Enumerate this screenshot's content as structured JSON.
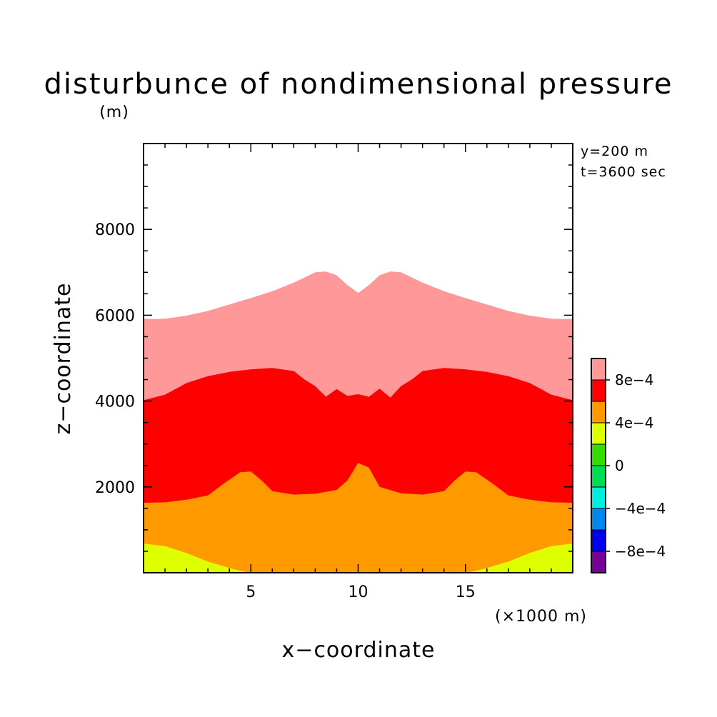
{
  "chart_data": {
    "type": "contour",
    "title": "disturbunce of nondimensional pressure",
    "ylabel": "z−coordinate",
    "yunit": "(m)",
    "xlabel": "x−coordinate",
    "xunit": "(×1000 m)",
    "annotations": [
      "y=200 m",
      "t=3600 sec"
    ],
    "xlim": [
      0,
      20
    ],
    "ylim": [
      0,
      10000
    ],
    "x_ticks": [
      {
        "value": 5,
        "label": "5"
      },
      {
        "value": 10,
        "label": "10"
      },
      {
        "value": 15,
        "label": "15"
      }
    ],
    "y_ticks": [
      {
        "value": 2000,
        "label": "2000"
      },
      {
        "value": 4000,
        "label": "4000"
      },
      {
        "value": 6000,
        "label": "6000"
      },
      {
        "value": 8000,
        "label": "8000"
      }
    ],
    "colorbar": {
      "levels": [
        {
          "color": "#ff9999"
        },
        {
          "color": "#ff0000"
        },
        {
          "color": "#ff9900"
        },
        {
          "color": "#ddff00"
        },
        {
          "color": "#33dd00"
        },
        {
          "color": "#00dd55"
        },
        {
          "color": "#00eedd"
        },
        {
          "color": "#0088ee"
        },
        {
          "color": "#0000ee"
        },
        {
          "color": "#770099"
        }
      ],
      "labels": [
        "8e−4",
        "4e−4",
        "0",
        "−4e−4",
        "−8e−4"
      ]
    },
    "contour_bands": [
      {
        "name": "above-8e-4",
        "color": "#ff9999",
        "upper_boundary": [
          [
            0,
            5920
          ],
          [
            0.5,
            5910
          ],
          [
            1,
            5920
          ],
          [
            2,
            5990
          ],
          [
            3,
            6100
          ],
          [
            4,
            6250
          ],
          [
            5,
            6400
          ],
          [
            6,
            6560
          ],
          [
            7,
            6760
          ],
          [
            7.5,
            6880
          ],
          [
            8,
            7000
          ],
          [
            8.5,
            7020
          ],
          [
            9,
            6930
          ],
          [
            9.5,
            6700
          ],
          [
            10,
            6520
          ],
          [
            10.5,
            6700
          ],
          [
            11,
            6930
          ],
          [
            11.5,
            7020
          ],
          [
            12,
            7000
          ],
          [
            12.5,
            6880
          ],
          [
            13,
            6760
          ],
          [
            14,
            6560
          ],
          [
            15,
            6400
          ],
          [
            16,
            6250
          ],
          [
            17,
            6100
          ],
          [
            18,
            5990
          ],
          [
            19,
            5920
          ],
          [
            19.5,
            5910
          ],
          [
            20,
            5920
          ]
        ]
      },
      {
        "name": "4e-4-to-8e-4",
        "color": "#ff0000",
        "upper_boundary": [
          [
            0,
            4020
          ],
          [
            1,
            4150
          ],
          [
            2,
            4420
          ],
          [
            3,
            4580
          ],
          [
            4,
            4680
          ],
          [
            5,
            4740
          ],
          [
            6,
            4770
          ],
          [
            7,
            4700
          ],
          [
            7.5,
            4500
          ],
          [
            8,
            4350
          ],
          [
            8.5,
            4100
          ],
          [
            9,
            4280
          ],
          [
            9.5,
            4120
          ],
          [
            10,
            4160
          ],
          [
            10.5,
            4100
          ],
          [
            11,
            4290
          ],
          [
            11.5,
            4080
          ],
          [
            12,
            4350
          ],
          [
            12.5,
            4500
          ],
          [
            13,
            4700
          ],
          [
            14,
            4770
          ],
          [
            15,
            4740
          ],
          [
            16,
            4680
          ],
          [
            17,
            4580
          ],
          [
            18,
            4420
          ],
          [
            19,
            4150
          ],
          [
            20,
            4020
          ]
        ]
      },
      {
        "name": "0-to-4e-4",
        "color": "#ff9900",
        "upper_boundary": [
          [
            0,
            1630
          ],
          [
            1,
            1640
          ],
          [
            2,
            1700
          ],
          [
            3,
            1800
          ],
          [
            3.8,
            2100
          ],
          [
            4.5,
            2340
          ],
          [
            5,
            2360
          ],
          [
            5.5,
            2150
          ],
          [
            6,
            1900
          ],
          [
            7,
            1820
          ],
          [
            8,
            1840
          ],
          [
            9,
            1930
          ],
          [
            9.5,
            2150
          ],
          [
            10,
            2560
          ],
          [
            10.5,
            2450
          ],
          [
            11,
            2000
          ],
          [
            12,
            1850
          ],
          [
            13,
            1820
          ],
          [
            14,
            1900
          ],
          [
            14.5,
            2150
          ],
          [
            15,
            2360
          ],
          [
            15.5,
            2340
          ],
          [
            16.2,
            2100
          ],
          [
            17,
            1800
          ],
          [
            18,
            1700
          ],
          [
            19,
            1640
          ],
          [
            20,
            1630
          ]
        ]
      },
      {
        "name": "-4e-4-to-0",
        "color": "#ddff00",
        "upper_boundary": [
          [
            0,
            680
          ],
          [
            1,
            620
          ],
          [
            2,
            460
          ],
          [
            3,
            260
          ],
          [
            4,
            110
          ],
          [
            4.7,
            20
          ],
          [
            5,
            0
          ],
          [
            15,
            0
          ],
          [
            15.3,
            20
          ],
          [
            16,
            110
          ],
          [
            17,
            260
          ],
          [
            18,
            460
          ],
          [
            19,
            620
          ],
          [
            20,
            680
          ]
        ]
      }
    ]
  }
}
